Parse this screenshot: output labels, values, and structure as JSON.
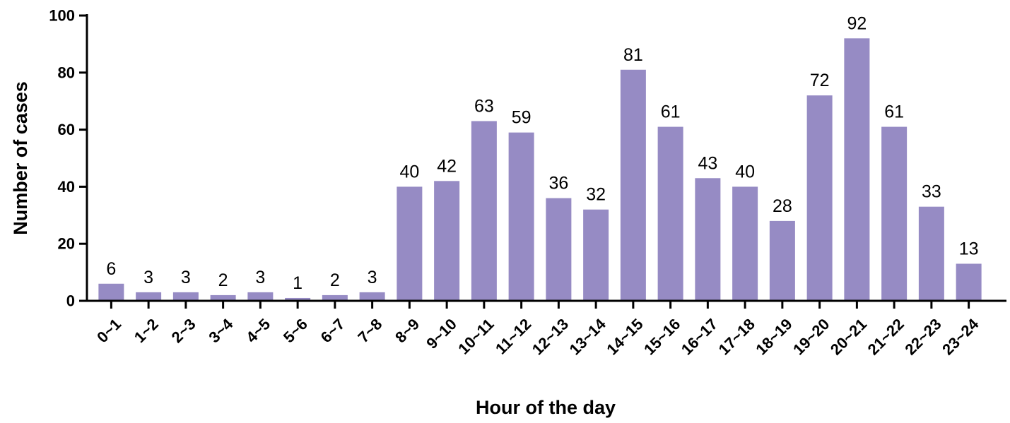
{
  "chart_data": {
    "type": "bar",
    "title": "",
    "xlabel": "Hour of the day",
    "ylabel": "Number of cases",
    "ylim": [
      0,
      100
    ],
    "yticks": [
      0,
      20,
      40,
      60,
      80,
      100
    ],
    "grid": false,
    "bar_color": "#968BC4",
    "categories": [
      "0~1",
      "1~2",
      "2~3",
      "3~4",
      "4~5",
      "5~6",
      "6~7",
      "7~8",
      "8~9",
      "9~10",
      "10~11",
      "11~12",
      "12~13",
      "13~14",
      "14~15",
      "15~16",
      "16~17",
      "17~18",
      "18~19",
      "19~20",
      "20~21",
      "21~22",
      "22~23",
      "23~24"
    ],
    "values": [
      6,
      3,
      3,
      2,
      3,
      1,
      2,
      3,
      40,
      42,
      63,
      59,
      36,
      32,
      81,
      61,
      43,
      40,
      28,
      72,
      92,
      61,
      33,
      13
    ]
  }
}
